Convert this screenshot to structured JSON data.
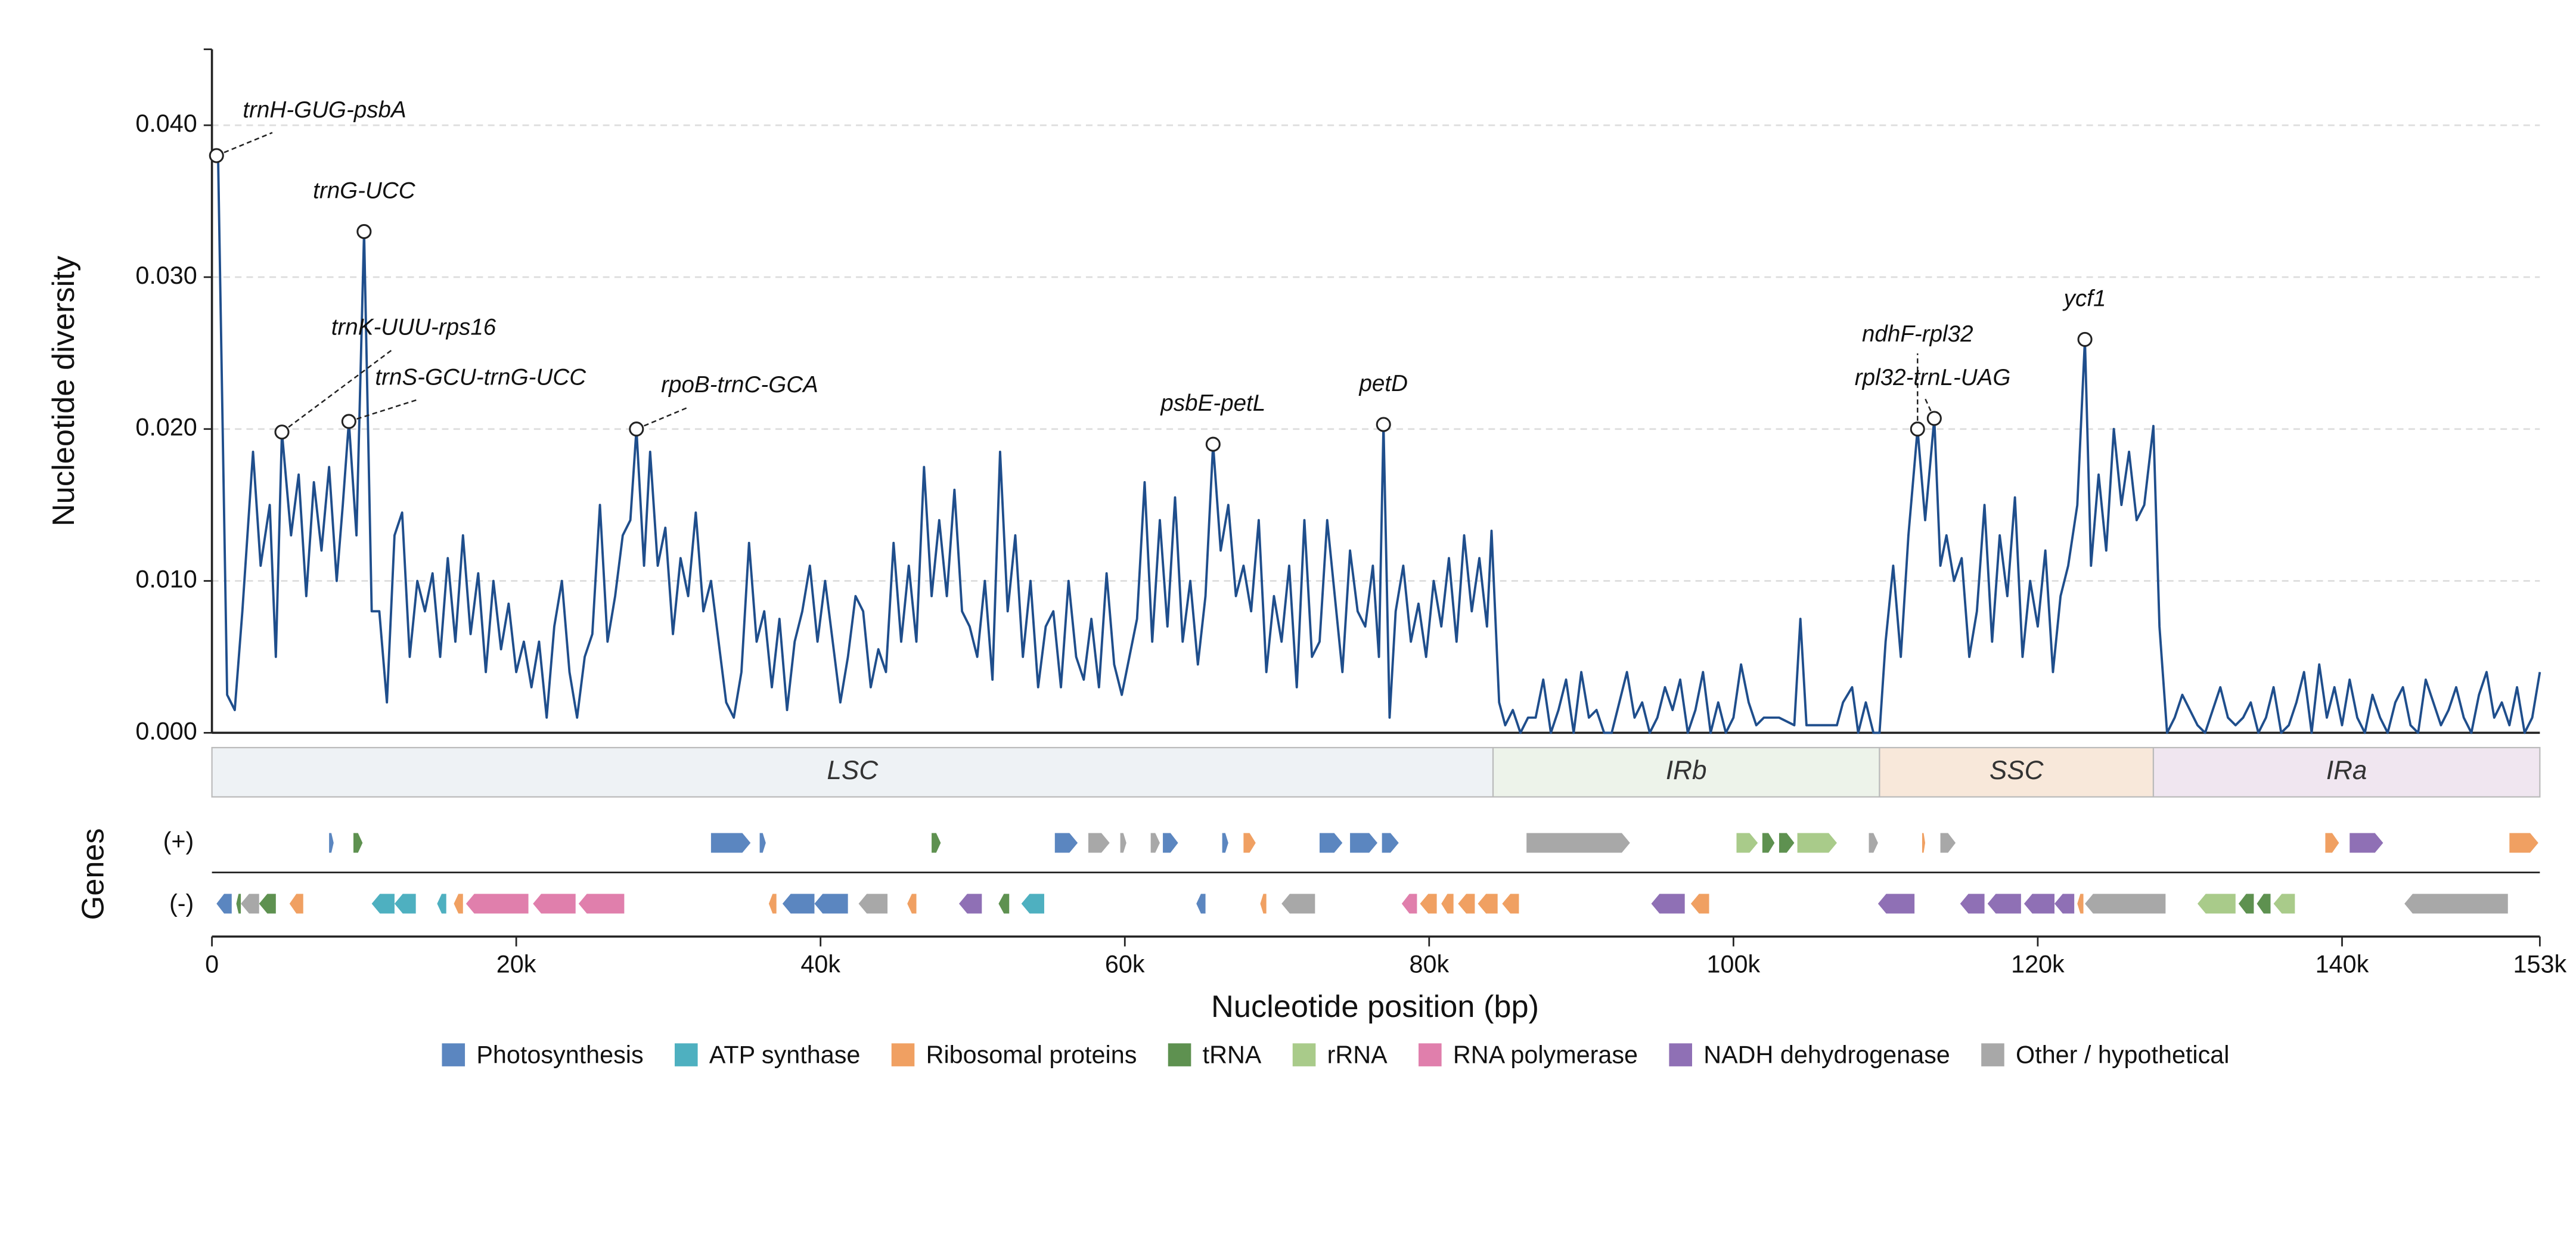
{
  "chart_data": {
    "type": "line",
    "y_label": "Nucleotide diversity",
    "x_label": "Nucleotide position (bp)",
    "gene_track_label": "Genes",
    "strand_labels": [
      "(+)",
      "(-)"
    ],
    "xlim": [
      0,
      153000
    ],
    "ylim": [
      0,
      0.045
    ],
    "xticks": [
      0,
      {
        "value": 20000,
        "label": "20k"
      },
      {
        "value": 40000,
        "label": "40k"
      },
      {
        "value": 60000,
        "label": "60k"
      },
      {
        "value": 80000,
        "label": "80k"
      },
      {
        "value": 100000,
        "label": "100k"
      },
      {
        "value": 120000,
        "label": "120k"
      },
      {
        "value": 140000,
        "label": "140k"
      },
      {
        "value": 153000,
        "label": "153k"
      }
    ],
    "yticks": [
      {
        "value": 0,
        "label": "0.000"
      },
      {
        "value": 0.01,
        "label": "0.010"
      },
      {
        "value": 0.02,
        "label": "0.020"
      },
      {
        "value": 0.03,
        "label": "0.030"
      },
      {
        "value": 0.04,
        "label": "0.040"
      }
    ],
    "grid": true,
    "series": [
      {
        "color": "#1f4e8c",
        "x": [
          0,
          400,
          1000,
          1500,
          2000,
          2700,
          3200,
          3800,
          4200,
          4600,
          5200,
          5700,
          6200,
          6700,
          7200,
          7700,
          8200,
          8600,
          9000,
          9500,
          10000,
          10500,
          11000,
          11500,
          12000,
          12500,
          13000,
          13500,
          14000,
          14500,
          15000,
          15500,
          16000,
          16500,
          17000,
          17500,
          18000,
          18500,
          19000,
          19500,
          20000,
          20500,
          21000,
          21500,
          22000,
          22500,
          23000,
          23500,
          24000,
          24500,
          25000,
          25500,
          26000,
          26500,
          27000,
          27500,
          27900,
          28400,
          28800,
          29300,
          29800,
          30300,
          30800,
          31300,
          31800,
          32300,
          32800,
          33300,
          33800,
          34300,
          34800,
          35300,
          35800,
          36300,
          36800,
          37300,
          37800,
          38300,
          38800,
          39300,
          39800,
          40300,
          40800,
          41300,
          41800,
          42300,
          42800,
          43300,
          43800,
          44300,
          44800,
          45300,
          45800,
          46300,
          46800,
          47300,
          47800,
          48300,
          48800,
          49300,
          49800,
          50300,
          50800,
          51300,
          51800,
          52300,
          52800,
          53300,
          53800,
          54300,
          54800,
          55300,
          55800,
          56300,
          56800,
          57300,
          57800,
          58300,
          58800,
          59300,
          59800,
          60300,
          60800,
          61300,
          61800,
          62300,
          62800,
          63300,
          63800,
          64300,
          64800,
          65300,
          65800,
          66300,
          66800,
          67300,
          67800,
          68300,
          68800,
          69300,
          69800,
          70300,
          70800,
          71300,
          71800,
          72300,
          72800,
          73300,
          73800,
          74300,
          74800,
          75300,
          75800,
          76300,
          76700,
          77000,
          77400,
          77800,
          78300,
          78800,
          79300,
          79800,
          80300,
          80800,
          81300,
          81800,
          82300,
          82800,
          83300,
          83800,
          84100,
          84600,
          85000,
          85500,
          86000,
          86500,
          87000,
          87500,
          88000,
          88500,
          89000,
          89500,
          90000,
          90500,
          91000,
          91500,
          92000,
          92500,
          93000,
          93500,
          94000,
          94500,
          95000,
          95500,
          96000,
          96500,
          97000,
          97500,
          98000,
          98500,
          99000,
          99500,
          100000,
          100500,
          101000,
          101500,
          102000,
          103000,
          104000,
          104400,
          104800,
          105500,
          106000,
          106800,
          107200,
          107800,
          108200,
          108700,
          109200,
          109600,
          110000,
          110500,
          111000,
          111500,
          112100,
          112600,
          113200,
          113600,
          114000,
          114500,
          115000,
          115500,
          116000,
          116500,
          117000,
          117500,
          118000,
          118500,
          119000,
          119500,
          120000,
          120500,
          121000,
          121500,
          122000,
          122600,
          123100,
          123500,
          124000,
          124500,
          125000,
          125500,
          126000,
          126500,
          127000,
          127600,
          128000,
          128500,
          129000,
          129500,
          130000,
          130500,
          131000,
          131500,
          132000,
          132500,
          133000,
          133500,
          134000,
          134500,
          135000,
          135500,
          136000,
          136500,
          137000,
          137500,
          138000,
          138500,
          139000,
          139500,
          140000,
          140500,
          141000,
          141500,
          142000,
          142500,
          143000,
          143500,
          144000,
          144500,
          145000,
          145500,
          146000,
          146500,
          147000,
          147500,
          148000,
          148500,
          149000,
          149500,
          150000,
          150500,
          151000,
          151500,
          152000,
          152500,
          153000
        ],
        "values": [
          0.038,
          0.0382,
          0.0025,
          0.0015,
          0.008,
          0.0185,
          0.011,
          0.015,
          0.005,
          0.0198,
          0.013,
          0.017,
          0.009,
          0.0165,
          0.012,
          0.0175,
          0.01,
          0.015,
          0.0205,
          0.013,
          0.033,
          0.008,
          0.008,
          0.002,
          0.013,
          0.0145,
          0.005,
          0.01,
          0.008,
          0.0105,
          0.005,
          0.0115,
          0.006,
          0.013,
          0.0065,
          0.0105,
          0.004,
          0.01,
          0.0055,
          0.0085,
          0.004,
          0.006,
          0.003,
          0.006,
          0.001,
          0.007,
          0.01,
          0.004,
          0.001,
          0.005,
          0.0065,
          0.015,
          0.006,
          0.009,
          0.013,
          0.014,
          0.02,
          0.011,
          0.0185,
          0.011,
          0.0135,
          0.0065,
          0.0115,
          0.009,
          0.0145,
          0.008,
          0.01,
          0.006,
          0.002,
          0.001,
          0.004,
          0.0125,
          0.006,
          0.008,
          0.003,
          0.0075,
          0.0015,
          0.006,
          0.008,
          0.011,
          0.006,
          0.01,
          0.006,
          0.002,
          0.005,
          0.009,
          0.008,
          0.003,
          0.0055,
          0.004,
          0.0125,
          0.006,
          0.011,
          0.006,
          0.0175,
          0.009,
          0.014,
          0.009,
          0.016,
          0.008,
          0.007,
          0.005,
          0.01,
          0.0035,
          0.0185,
          0.008,
          0.013,
          0.005,
          0.01,
          0.003,
          0.007,
          0.008,
          0.003,
          0.01,
          0.005,
          0.0035,
          0.0075,
          0.003,
          0.0105,
          0.0045,
          0.0025,
          0.005,
          0.0075,
          0.0165,
          0.006,
          0.014,
          0.007,
          0.0155,
          0.006,
          0.01,
          0.0045,
          0.009,
          0.019,
          0.012,
          0.015,
          0.009,
          0.011,
          0.008,
          0.014,
          0.004,
          0.009,
          0.006,
          0.011,
          0.003,
          0.014,
          0.005,
          0.006,
          0.014,
          0.009,
          0.004,
          0.012,
          0.008,
          0.007,
          0.011,
          0.005,
          0.0203,
          0.001,
          0.008,
          0.011,
          0.006,
          0.0085,
          0.005,
          0.01,
          0.007,
          0.0115,
          0.006,
          0.013,
          0.008,
          0.0115,
          0.007,
          0.0133,
          0.002,
          0.0005,
          0.0015,
          0,
          0.001,
          0.001,
          0.0035,
          0,
          0.0015,
          0.0035,
          0,
          0.004,
          0.001,
          0.0015,
          0,
          0,
          0.002,
          0.004,
          0.001,
          0.002,
          0,
          0.001,
          0.003,
          0.0015,
          0.0035,
          0,
          0.0015,
          0.004,
          0,
          0.002,
          0,
          0.001,
          0.0045,
          0.002,
          0.0005,
          0.001,
          0.001,
          0.0005,
          0.0075,
          0.0005,
          0.0005,
          0.0005,
          0.0005,
          0.002,
          0.003,
          0,
          0.002,
          0,
          0,
          0.006,
          0.011,
          0.005,
          0.013,
          0.02,
          0.014,
          0.0207,
          0.011,
          0.013,
          0.01,
          0.0115,
          0.005,
          0.008,
          0.015,
          0.006,
          0.013,
          0.009,
          0.0155,
          0.005,
          0.01,
          0.007,
          0.012,
          0.004,
          0.009,
          0.011,
          0.015,
          0.0259,
          0.011,
          0.017,
          0.012,
          0.02,
          0.015,
          0.0185,
          0.014,
          0.015,
          0.0202,
          0.007,
          0,
          0.001,
          0.0025,
          0.0015,
          0.0005,
          0,
          0.0015,
          0.003,
          0.001,
          0.0005,
          0.001,
          0.002,
          0,
          0.001,
          0.003,
          0,
          0.0005,
          0.002,
          0.004,
          0,
          0.0045,
          0.001,
          0.003,
          0.0005,
          0.0035,
          0.001,
          0,
          0.0025,
          0.001,
          0,
          0.002,
          0.003,
          0.0005,
          0,
          0.0035,
          0.002,
          0.0005,
          0.0015,
          0.003,
          0.001,
          0,
          0.0025,
          0.004,
          0.001,
          0.002,
          0.0005,
          0.003,
          0,
          0.001,
          0.004
        ]
      }
    ],
    "annotations": [
      {
        "label": "trnH-GUG-psbA",
        "x": 300,
        "y": 0.038
      },
      {
        "label": "trnG-UCC",
        "x": 10000,
        "y": 0.033
      },
      {
        "label": "trnK-UUU-rps16",
        "x": 4600,
        "y": 0.0198
      },
      {
        "label": "trnS-GCU-trnG-UCC",
        "x": 9000,
        "y": 0.0205
      },
      {
        "label": "rpoB-trnC-GCA",
        "x": 27900,
        "y": 0.02
      },
      {
        "label": "psbE-petL",
        "x": 65800,
        "y": 0.019
      },
      {
        "label": "petD",
        "x": 77000,
        "y": 0.0203
      },
      {
        "label": "ndhF-rpl32",
        "x": 112100,
        "y": 0.02
      },
      {
        "label": "rpl32-trnL-UAG",
        "x": 113200,
        "y": 0.0207
      },
      {
        "label": "ycf1",
        "x": 123100,
        "y": 0.0259
      }
    ],
    "regions": [
      {
        "name": "LSC",
        "start": 0,
        "end": 84200,
        "color": "#eef2f5"
      },
      {
        "name": "IRb",
        "start": 84200,
        "end": 109600,
        "color": "#edf3ea"
      },
      {
        "name": "SSC",
        "start": 109600,
        "end": 127600,
        "color": "#f8e8da"
      },
      {
        "name": "IRa",
        "start": 127600,
        "end": 153000,
        "color": "#f0e6f0"
      }
    ],
    "gene_categories": [
      {
        "name": "Photosynthesis",
        "color": "#5b86c0"
      },
      {
        "name": "ATP synthase",
        "color": "#4eb0c0"
      },
      {
        "name": "Ribosomal proteins",
        "color": "#f0a062"
      },
      {
        "name": "tRNA",
        "color": "#5e9150"
      },
      {
        "name": "rRNA",
        "color": "#a9cb8a"
      },
      {
        "name": "RNA polymerase",
        "color": "#e07fac"
      },
      {
        "name": "NADH dehydrogenase",
        "color": "#8f70b5"
      },
      {
        "name": "Other / hypothetical",
        "color": "#a8a8a8"
      }
    ],
    "genes_plus": [
      [
        7700,
        8000,
        0
      ],
      [
        9300,
        9900,
        3
      ],
      [
        32800,
        35400,
        0
      ],
      [
        36000,
        36400,
        0
      ],
      [
        47300,
        47900,
        3
      ],
      [
        55400,
        56900,
        0
      ],
      [
        57600,
        59000,
        7
      ],
      [
        59700,
        60100,
        7
      ],
      [
        61700,
        62300,
        7
      ],
      [
        62500,
        63500,
        0
      ],
      [
        66400,
        66800,
        0
      ],
      [
        67800,
        68600,
        2
      ],
      [
        72800,
        74300,
        0
      ],
      [
        74800,
        76600,
        0
      ],
      [
        76900,
        78000,
        0
      ],
      [
        86400,
        93200,
        7
      ],
      [
        100200,
        101600,
        4
      ],
      [
        101900,
        102700,
        3
      ],
      [
        103000,
        104000,
        3
      ],
      [
        104200,
        106800,
        4
      ],
      [
        108900,
        109500,
        7
      ],
      [
        112400,
        112600,
        2
      ],
      [
        113600,
        114600,
        7
      ],
      [
        138900,
        139800,
        2
      ],
      [
        140500,
        142700,
        6
      ],
      [
        151000,
        152900,
        2
      ]
    ],
    "genes_minus": [
      [
        300,
        1300,
        0
      ],
      [
        1600,
        1900,
        3
      ],
      [
        1900,
        3100,
        7
      ],
      [
        3100,
        4200,
        3
      ],
      [
        5100,
        6000,
        2
      ],
      [
        10500,
        12000,
        1
      ],
      [
        12000,
        13400,
        1
      ],
      [
        14800,
        15400,
        1
      ],
      [
        15900,
        16500,
        2
      ],
      [
        16700,
        20800,
        5
      ],
      [
        21100,
        23900,
        5
      ],
      [
        24100,
        27100,
        5
      ],
      [
        36600,
        37100,
        2
      ],
      [
        37500,
        39600,
        0
      ],
      [
        39600,
        41800,
        0
      ],
      [
        42500,
        44400,
        7
      ],
      [
        45700,
        46300,
        2
      ],
      [
        49100,
        50600,
        6
      ],
      [
        51700,
        52400,
        3
      ],
      [
        53200,
        54700,
        1
      ],
      [
        64700,
        65300,
        0
      ],
      [
        68900,
        69300,
        2
      ],
      [
        70300,
        72500,
        7
      ],
      [
        78200,
        79200,
        5
      ],
      [
        79400,
        80500,
        2
      ],
      [
        80800,
        81600,
        2
      ],
      [
        81900,
        83000,
        2
      ],
      [
        83200,
        84500,
        2
      ],
      [
        84800,
        85900,
        2
      ],
      [
        94600,
        96800,
        6
      ],
      [
        97200,
        98400,
        2
      ],
      [
        109500,
        111900,
        6
      ],
      [
        114900,
        116500,
        6
      ],
      [
        116700,
        118900,
        6
      ],
      [
        119100,
        121100,
        6
      ],
      [
        121100,
        122400,
        6
      ],
      [
        122600,
        123000,
        2
      ],
      [
        123100,
        128400,
        7
      ],
      [
        130500,
        133000,
        4
      ],
      [
        133200,
        134200,
        3
      ],
      [
        134400,
        135300,
        3
      ],
      [
        135500,
        136900,
        4
      ],
      [
        144100,
        150900,
        7
      ]
    ]
  }
}
